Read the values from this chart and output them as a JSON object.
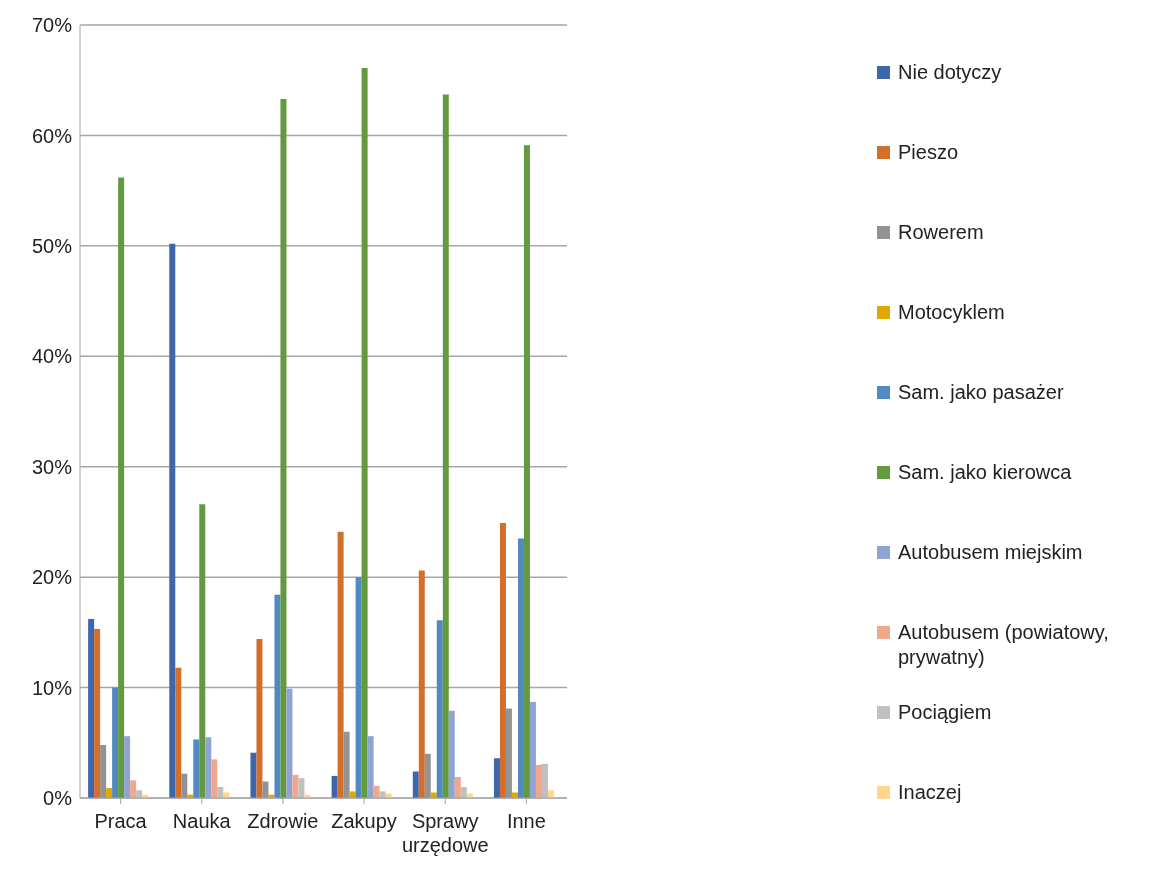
{
  "chart_data": {
    "type": "bar",
    "categories": [
      "Praca",
      "Nauka",
      "Zdrowie",
      "Zakupy",
      "Sprawy urzędowe",
      "Inne"
    ],
    "series": [
      {
        "name": "Nie dotyczy",
        "color": "#3e66ad",
        "values": [
          16.2,
          50.2,
          4.1,
          2.0,
          2.4,
          3.6
        ]
      },
      {
        "name": "Pieszo",
        "color": "#d46e2b",
        "values": [
          15.3,
          11.8,
          14.4,
          24.1,
          20.6,
          24.9
        ]
      },
      {
        "name": "Rowerem",
        "color": "#939393",
        "values": [
          4.8,
          2.2,
          1.5,
          6.0,
          4.0,
          8.1
        ]
      },
      {
        "name": "Motocyklem",
        "color": "#e0a800",
        "values": [
          0.9,
          0.3,
          0.3,
          0.6,
          0.5,
          0.5
        ]
      },
      {
        "name": "Sam. jako pasażer",
        "color": "#508ac0",
        "values": [
          10.0,
          5.3,
          18.4,
          20.0,
          16.1,
          23.5
        ]
      },
      {
        "name": "Sam. jako kierowca",
        "color": "#629a3d",
        "values": [
          56.2,
          26.6,
          63.3,
          66.1,
          63.7,
          59.1
        ]
      },
      {
        "name": "Autobusem miejskim",
        "color": "#90a4d4",
        "values": [
          5.6,
          5.5,
          9.9,
          5.6,
          7.9,
          8.7
        ]
      },
      {
        "name": "Autobusem (powiatowy, prywatny)",
        "color": "#f0a78a",
        "values": [
          1.6,
          3.5,
          2.1,
          1.1,
          1.9,
          3.0
        ]
      },
      {
        "name": "Pociągiem",
        "color": "#c0c0c0",
        "values": [
          0.7,
          1.0,
          1.8,
          0.6,
          1.0,
          3.1
        ]
      },
      {
        "name": "Inaczej",
        "color": "#ffd68a",
        "values": [
          0.3,
          0.5,
          0.3,
          0.4,
          0.4,
          0.7
        ]
      }
    ],
    "ylim": [
      0,
      70
    ],
    "yticks": [
      {
        "value": 0,
        "label": "0%"
      },
      {
        "value": 10,
        "label": "10%"
      },
      {
        "value": 20,
        "label": "20%"
      },
      {
        "value": 30,
        "label": "30%"
      },
      {
        "value": 40,
        "label": "40%"
      },
      {
        "value": 50,
        "label": "50%"
      },
      {
        "value": 60,
        "label": "60%"
      },
      {
        "value": 70,
        "label": "70%"
      }
    ],
    "grid": "y",
    "legend": "right"
  }
}
